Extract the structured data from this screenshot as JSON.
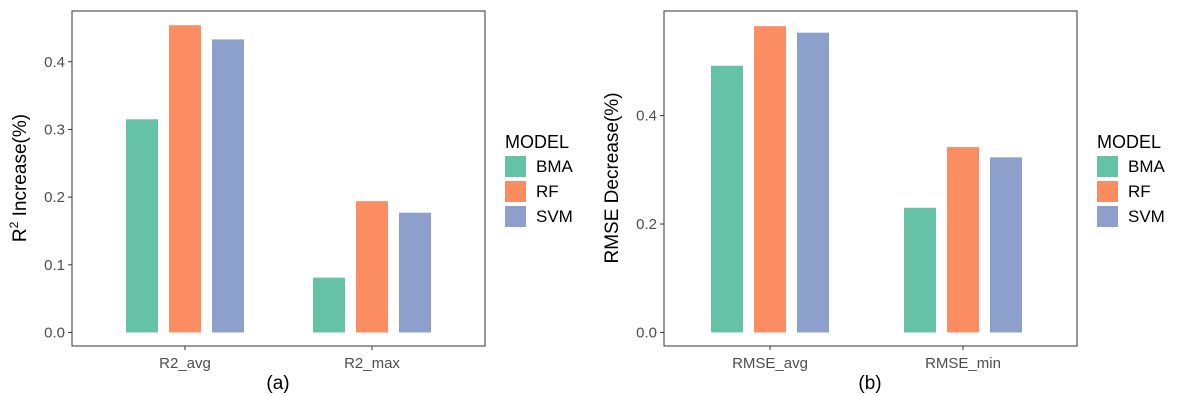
{
  "colors": {
    "BMA": "#66c2a5",
    "RF": "#fc8d62",
    "SVM": "#8da0cb"
  },
  "chart_data": [
    {
      "type": "bar",
      "panel_label": "(a)",
      "ylabel_base": "R",
      "ylabel_sup": "2",
      "ylabel_rest": " Increase(%)",
      "categories": [
        "R2_avg",
        "R2_max"
      ],
      "series": [
        {
          "name": "BMA",
          "values": [
            0.315,
            0.081
          ]
        },
        {
          "name": "RF",
          "values": [
            0.454,
            0.194
          ]
        },
        {
          "name": "SVM",
          "values": [
            0.433,
            0.177
          ]
        }
      ],
      "yticks": [
        "0.0",
        "0.1",
        "0.2",
        "0.3",
        "0.4"
      ],
      "ylim": [
        -0.02,
        0.475
      ],
      "legend": {
        "title": "MODEL",
        "position": "right",
        "entries": [
          "BMA",
          "RF",
          "SVM"
        ]
      },
      "grid": false
    },
    {
      "type": "bar",
      "panel_label": "(b)",
      "ylabel": "RMSE Decrease(%)",
      "categories": [
        "RMSE_avg",
        "RMSE_min"
      ],
      "series": [
        {
          "name": "BMA",
          "values": [
            0.492,
            0.23
          ]
        },
        {
          "name": "RF",
          "values": [
            0.565,
            0.342
          ]
        },
        {
          "name": "SVM",
          "values": [
            0.553,
            0.323
          ]
        }
      ],
      "yticks": [
        "0.0",
        "0.2",
        "0.4"
      ],
      "ylim": [
        -0.025,
        0.593
      ],
      "legend": {
        "title": "MODEL",
        "position": "right",
        "entries": [
          "BMA",
          "RF",
          "SVM"
        ]
      },
      "grid": false
    }
  ]
}
